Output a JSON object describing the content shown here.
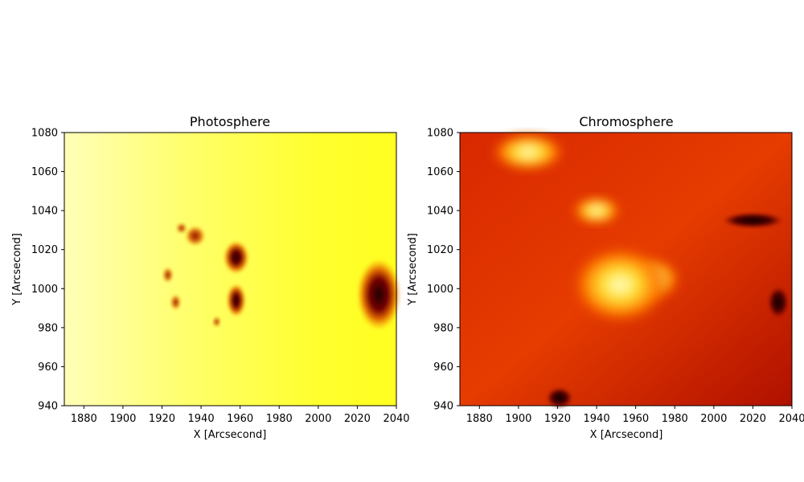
{
  "chart_data": [
    {
      "type": "heatmap",
      "title": "Photosphere",
      "xlabel": "X [Arcsecond]",
      "ylabel": "Y [Arcsecond]",
      "xlim": [
        1870,
        2040
      ],
      "ylim": [
        940,
        1080
      ],
      "xticks": [
        1880,
        1900,
        1920,
        1940,
        1960,
        1980,
        2000,
        2020,
        2040
      ],
      "yticks": [
        940,
        960,
        980,
        1000,
        1020,
        1040,
        1060,
        1080
      ],
      "colormap": "solar yellow (white-yellow-orange-dark red)",
      "background_intensity_color": "#ffff3a",
      "features": [
        {
          "kind": "sunspot",
          "x": 2031,
          "y": 997,
          "rx": 7,
          "ry": 13
        },
        {
          "kind": "sunspot",
          "x": 1958,
          "y": 1016,
          "rx": 4,
          "ry": 6
        },
        {
          "kind": "sunspot",
          "x": 1958,
          "y": 994,
          "rx": 3,
          "ry": 6
        },
        {
          "kind": "pore",
          "x": 1937,
          "y": 1027,
          "rx": 4,
          "ry": 4
        },
        {
          "kind": "pore",
          "x": 1930,
          "y": 1031,
          "rx": 2,
          "ry": 2
        },
        {
          "kind": "pore",
          "x": 1927,
          "y": 993,
          "rx": 2,
          "ry": 3
        },
        {
          "kind": "pore",
          "x": 1923,
          "y": 1007,
          "rx": 2,
          "ry": 3
        },
        {
          "kind": "pore",
          "x": 1948,
          "y": 983,
          "rx": 1.5,
          "ry": 2
        }
      ]
    },
    {
      "type": "heatmap",
      "title": "Chromosphere",
      "xlabel": "X [Arcsecond]",
      "ylabel": "Y [Arcsecond]",
      "xlim": [
        1870,
        2040
      ],
      "ylim": [
        940,
        1080
      ],
      "xticks": [
        1880,
        1900,
        1920,
        1940,
        1960,
        1980,
        2000,
        2020,
        2040
      ],
      "yticks": [
        940,
        960,
        980,
        1000,
        1020,
        1040,
        1060,
        1080
      ],
      "colormap": "solar red (black-dark red-orange-yellow)",
      "background_intensity_color": "#c81400",
      "features": [
        {
          "kind": "bright plage",
          "x": 1968,
          "y": 1005,
          "rx": 12,
          "ry": 9
        },
        {
          "kind": "bright plage",
          "x": 1952,
          "y": 1002,
          "rx": 20,
          "ry": 16
        },
        {
          "kind": "bright region",
          "x": 1940,
          "y": 1040,
          "rx": 10,
          "ry": 6
        },
        {
          "kind": "bright region",
          "x": 1905,
          "y": 1070,
          "rx": 15,
          "ry": 8
        },
        {
          "kind": "dark spot",
          "x": 2033,
          "y": 993,
          "rx": 4,
          "ry": 6
        },
        {
          "kind": "dark spot",
          "x": 1921,
          "y": 944,
          "rx": 5,
          "ry": 4
        },
        {
          "kind": "dark filament",
          "x": 2020,
          "y": 1035,
          "rx": 12,
          "ry": 3
        }
      ]
    }
  ]
}
